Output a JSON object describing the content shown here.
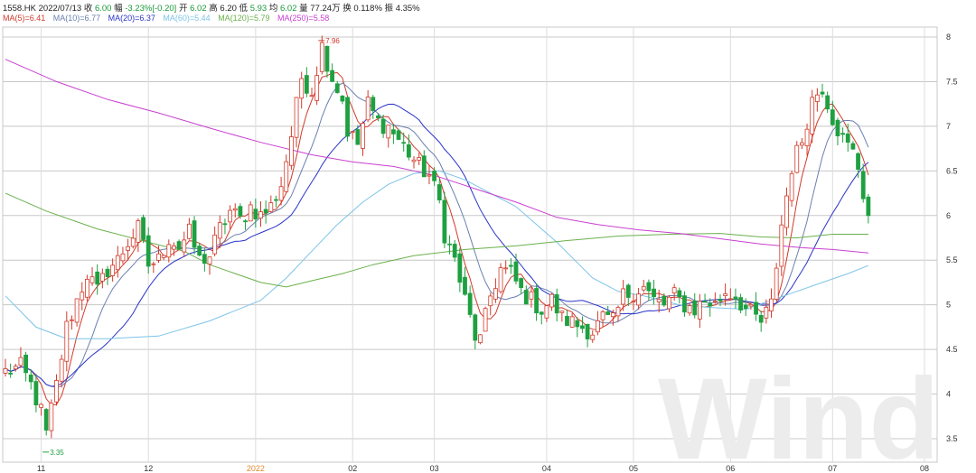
{
  "header": {
    "code": "1558.HK",
    "date": "2022/07/13",
    "close_label": "收",
    "close_value": "6.00",
    "change_label": "幅",
    "change_value": "-3.23%[-0.20]",
    "open_label": "开",
    "open_value": "6.02",
    "high_label": "高",
    "high_value": "6.20",
    "low_label": "低",
    "low_value": "5.93",
    "avg_label": "均",
    "avg_value": "6.02",
    "volume_label": "量",
    "volume_value": "77.24万",
    "turnover_label": "换",
    "turnover_value": "0.118%",
    "amplitude_label": "振",
    "amplitude_value": "4.35%"
  },
  "legend": [
    {
      "label": "MA(5)=6.41",
      "color": "#d23a2a"
    },
    {
      "label": "MA(10)=6.77",
      "color": "#6a7fb0"
    },
    {
      "label": "MA(20)=6.37",
      "color": "#2a34c8"
    },
    {
      "label": "MA(60)=5.44",
      "color": "#7cc4e8"
    },
    {
      "label": "MA(120)=5.79",
      "color": "#6ab04c"
    },
    {
      "label": "MA(250)=5.58",
      "color": "#c840d0"
    }
  ],
  "watermark": "Wind",
  "colors": {
    "up": "#d23a2a",
    "down": "#1fa040",
    "year_label": "#e08a2a"
  },
  "chart_data": {
    "type": "candlestick",
    "y_axis": {
      "min": 3.3,
      "max": 8.05,
      "ticks": [
        "3.5",
        "4",
        "4.5",
        "5",
        "5.5",
        "6",
        "6.5",
        "7",
        "7.5",
        "8"
      ]
    },
    "x_axis": {
      "ticks": [
        {
          "label": "11",
          "day": 7
        },
        {
          "label": "12",
          "day": 28
        },
        {
          "label": "2022",
          "day": 49,
          "highlight": true
        },
        {
          "label": "02",
          "day": 68
        },
        {
          "label": "03",
          "day": 84
        },
        {
          "label": "04",
          "day": 106
        },
        {
          "label": "05",
          "day": 123
        },
        {
          "label": "06",
          "day": 142
        },
        {
          "label": "07",
          "day": 162
        },
        {
          "label": "08",
          "day": 180
        }
      ]
    },
    "grid": true,
    "annotations": [
      {
        "text": "7.96",
        "day": 62,
        "value": 7.96,
        "color": "#d23a2a"
      },
      {
        "text": "3.35",
        "day": 8,
        "value": 3.35,
        "color": "#1fa040"
      }
    ],
    "anchors": [
      [
        0,
        4.25
      ],
      [
        3,
        4.3
      ],
      [
        5,
        4.1
      ],
      [
        7,
        3.8
      ],
      [
        8,
        3.55
      ],
      [
        10,
        4.1
      ],
      [
        12,
        4.75
      ],
      [
        14,
        5.05
      ],
      [
        16,
        5.35
      ],
      [
        18,
        5.15
      ],
      [
        20,
        5.4
      ],
      [
        22,
        5.5
      ],
      [
        24,
        5.7
      ],
      [
        26,
        5.85
      ],
      [
        28,
        5.45
      ],
      [
        30,
        5.5
      ],
      [
        32,
        5.75
      ],
      [
        34,
        5.65
      ],
      [
        36,
        5.8
      ],
      [
        38,
        5.5
      ],
      [
        40,
        5.55
      ],
      [
        42,
        5.85
      ],
      [
        44,
        6.05
      ],
      [
        46,
        5.95
      ],
      [
        48,
        6.1
      ],
      [
        50,
        6.0
      ],
      [
        52,
        6.1
      ],
      [
        54,
        6.35
      ],
      [
        56,
        6.9
      ],
      [
        58,
        7.55
      ],
      [
        60,
        7.4
      ],
      [
        62,
        7.9
      ],
      [
        64,
        7.55
      ],
      [
        66,
        7.3
      ],
      [
        67,
        6.95
      ],
      [
        69,
        6.8
      ],
      [
        71,
        7.25
      ],
      [
        73,
        7.05
      ],
      [
        75,
        7.0
      ],
      [
        77,
        6.85
      ],
      [
        79,
        6.7
      ],
      [
        81,
        6.55
      ],
      [
        83,
        6.45
      ],
      [
        85,
        6.15
      ],
      [
        86,
        5.8
      ],
      [
        88,
        5.5
      ],
      [
        90,
        5.05
      ],
      [
        92,
        4.65
      ],
      [
        93,
        4.6
      ],
      [
        95,
        5.1
      ],
      [
        97,
        5.4
      ],
      [
        99,
        5.35
      ],
      [
        101,
        5.15
      ],
      [
        103,
        5.05
      ],
      [
        105,
        4.95
      ],
      [
        107,
        5.05
      ],
      [
        109,
        4.85
      ],
      [
        111,
        4.8
      ],
      [
        113,
        4.75
      ],
      [
        115,
        4.7
      ],
      [
        117,
        4.85
      ],
      [
        119,
        4.8
      ],
      [
        121,
        5.1
      ],
      [
        123,
        5.15
      ],
      [
        125,
        5.2
      ],
      [
        127,
        5.05
      ],
      [
        129,
        5.0
      ],
      [
        131,
        5.1
      ],
      [
        133,
        5.0
      ],
      [
        135,
        4.95
      ],
      [
        137,
        5.05
      ],
      [
        139,
        5.0
      ],
      [
        141,
        5.15
      ],
      [
        143,
        5.1
      ],
      [
        145,
        4.95
      ],
      [
        147,
        4.85
      ],
      [
        148,
        4.8
      ],
      [
        150,
        5.0
      ],
      [
        152,
        5.9
      ],
      [
        154,
        6.55
      ],
      [
        156,
        6.85
      ],
      [
        158,
        7.3
      ],
      [
        160,
        7.45
      ],
      [
        162,
        7.1
      ],
      [
        164,
        6.85
      ],
      [
        166,
        6.7
      ],
      [
        167,
        6.55
      ],
      [
        168,
        6.25
      ],
      [
        169,
        6.0
      ]
    ],
    "series": [
      {
        "name": "MA(5)",
        "value": 6.41,
        "color": "#d23a2a",
        "width": 1
      },
      {
        "name": "MA(10)",
        "value": 6.77,
        "color": "#6a7fb0",
        "width": 1
      },
      {
        "name": "MA(20)",
        "value": 6.37,
        "color": "#2a34c8",
        "width": 1
      },
      {
        "name": "MA(60)",
        "value": 5.44,
        "color": "#7cc4e8",
        "width": 1,
        "points": [
          [
            0,
            5.1
          ],
          [
            6,
            4.75
          ],
          [
            12,
            4.62
          ],
          [
            20,
            4.62
          ],
          [
            30,
            4.65
          ],
          [
            40,
            4.82
          ],
          [
            50,
            5.05
          ],
          [
            55,
            5.3
          ],
          [
            60,
            5.6
          ],
          [
            65,
            5.9
          ],
          [
            70,
            6.15
          ],
          [
            75,
            6.35
          ],
          [
            80,
            6.47
          ],
          [
            85,
            6.5
          ],
          [
            90,
            6.4
          ],
          [
            95,
            6.25
          ],
          [
            100,
            6.1
          ],
          [
            108,
            5.7
          ],
          [
            115,
            5.3
          ],
          [
            120,
            5.15
          ],
          [
            125,
            5.1
          ],
          [
            132,
            5.0
          ],
          [
            138,
            4.97
          ],
          [
            145,
            4.95
          ],
          [
            150,
            5.05
          ],
          [
            155,
            5.15
          ],
          [
            160,
            5.25
          ],
          [
            165,
            5.35
          ],
          [
            169,
            5.44
          ]
        ]
      },
      {
        "name": "MA(120)",
        "value": 5.79,
        "color": "#6ab04c",
        "width": 1,
        "points": [
          [
            0,
            6.25
          ],
          [
            8,
            6.05
          ],
          [
            18,
            5.85
          ],
          [
            28,
            5.7
          ],
          [
            35,
            5.6
          ],
          [
            40,
            5.45
          ],
          [
            45,
            5.35
          ],
          [
            50,
            5.25
          ],
          [
            55,
            5.2
          ],
          [
            60,
            5.27
          ],
          [
            66,
            5.35
          ],
          [
            72,
            5.45
          ],
          [
            80,
            5.55
          ],
          [
            90,
            5.62
          ],
          [
            100,
            5.66
          ],
          [
            110,
            5.72
          ],
          [
            120,
            5.77
          ],
          [
            130,
            5.79
          ],
          [
            140,
            5.8
          ],
          [
            148,
            5.76
          ],
          [
            155,
            5.75
          ],
          [
            162,
            5.79
          ],
          [
            169,
            5.79
          ]
        ]
      },
      {
        "name": "MA(250)",
        "value": 5.58,
        "color": "#c840d0",
        "width": 1,
        "points": [
          [
            0,
            7.75
          ],
          [
            10,
            7.5
          ],
          [
            20,
            7.3
          ],
          [
            30,
            7.15
          ],
          [
            40,
            6.98
          ],
          [
            50,
            6.82
          ],
          [
            60,
            6.68
          ],
          [
            68,
            6.6
          ],
          [
            76,
            6.55
          ],
          [
            84,
            6.45
          ],
          [
            92,
            6.3
          ],
          [
            100,
            6.15
          ],
          [
            108,
            5.98
          ],
          [
            116,
            5.9
          ],
          [
            124,
            5.84
          ],
          [
            132,
            5.8
          ],
          [
            140,
            5.74
          ],
          [
            148,
            5.68
          ],
          [
            156,
            5.64
          ],
          [
            162,
            5.62
          ],
          [
            169,
            5.58
          ]
        ]
      }
    ]
  }
}
